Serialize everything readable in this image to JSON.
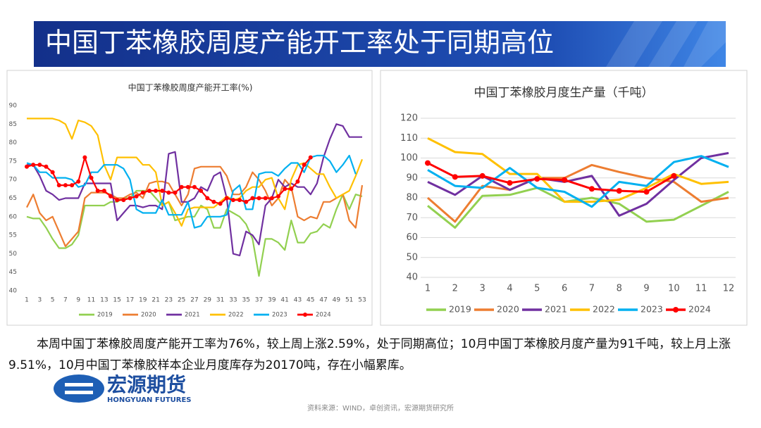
{
  "slide_title": "中国丁苯橡胶周度产能开工率处于同期高位",
  "chart_data": [
    {
      "type": "line",
      "title": "中国丁苯橡胶周度产能开工率(%)",
      "categories": [
        1,
        null,
        3,
        null,
        5,
        null,
        7,
        null,
        9,
        null,
        11,
        null,
        13,
        null,
        15,
        null,
        17,
        null,
        19,
        null,
        21,
        null,
        23,
        null,
        25,
        null,
        27,
        null,
        29,
        null,
        31,
        null,
        33,
        null,
        35,
        null,
        37,
        null,
        39,
        null,
        41,
        null,
        43,
        null,
        45,
        null,
        47,
        null,
        49,
        null,
        51,
        null,
        53
      ],
      "ylim": [
        40,
        90
      ],
      "yticks": [
        40,
        45,
        50,
        55,
        60,
        65,
        70,
        75,
        80,
        85,
        90
      ],
      "grid": false,
      "series": [
        {
          "name": "2019",
          "color": "#92d050",
          "values": [
            60,
            59.5,
            59.5,
            57,
            54,
            51.5,
            51.5,
            52.5,
            55,
            63,
            63,
            63,
            63,
            64,
            64,
            65,
            65,
            67,
            67,
            67,
            65,
            63,
            64,
            59,
            59.5,
            60,
            60,
            63,
            62,
            57,
            57,
            62,
            61,
            60,
            58,
            54,
            44,
            54,
            54,
            53,
            51,
            59,
            53,
            53,
            55.5,
            56,
            58,
            57,
            62,
            66,
            62,
            66,
            65.5
          ]
        },
        {
          "name": "2020",
          "color": "#ed7d31",
          "values": [
            62.5,
            66,
            61,
            59,
            60,
            56,
            52,
            54,
            56,
            65,
            66.5,
            66.5,
            66.5,
            66,
            65,
            65,
            66,
            66.5,
            65,
            69,
            69.5,
            69.5,
            69,
            66,
            63,
            66,
            73,
            73.5,
            73.5,
            73.5,
            73.5,
            71,
            66,
            66,
            68,
            72,
            70,
            67,
            63,
            65,
            70,
            68,
            60,
            59,
            60,
            59.5,
            64,
            64,
            65,
            66,
            59,
            57,
            68.5
          ]
        },
        {
          "name": "2021",
          "color": "#7030a0",
          "values": [
            74,
            74,
            71,
            67,
            66,
            64.5,
            65,
            65,
            65,
            69,
            69,
            69,
            69,
            69,
            59,
            61,
            63,
            63,
            62.5,
            63,
            63,
            62,
            77,
            77.5,
            64,
            64,
            65,
            68,
            67,
            71,
            72,
            65,
            50,
            49.5,
            56,
            55,
            52.5,
            63,
            65,
            70,
            68,
            69,
            68,
            68,
            66,
            69,
            76,
            81,
            85,
            84.5,
            81.5,
            81.5,
            81.5
          ]
        },
        {
          "name": "2022",
          "color": "#ffc000",
          "values": [
            86.5,
            86.5,
            86.5,
            86.5,
            86.5,
            86,
            85,
            81,
            86,
            85.5,
            84.5,
            82,
            74,
            70,
            76,
            76,
            76,
            76,
            74,
            74,
            72,
            63,
            64,
            61,
            57.5,
            62,
            62.5,
            62.5,
            62.5,
            62.5,
            64,
            65.5,
            64.5,
            65,
            67,
            68,
            68,
            70,
            70.5,
            65,
            62,
            70,
            74,
            74.5,
            73,
            71.5,
            71.5,
            68,
            65,
            66,
            67,
            71,
            75.5
          ]
        },
        {
          "name": "2023",
          "color": "#00b0f0",
          "values": [
            74.5,
            74,
            72,
            72,
            70.5,
            70.5,
            70.5,
            70,
            68,
            68.5,
            72,
            72,
            74,
            74,
            74,
            73,
            70,
            62,
            61,
            61,
            61,
            64.5,
            60.5,
            60.5,
            60.5,
            64,
            57,
            57.5,
            60,
            60,
            60,
            60.5,
            67,
            68.5,
            62,
            62,
            71.5,
            72,
            72,
            71,
            73,
            74.5,
            74.5,
            72,
            76,
            76.5,
            76.5,
            75,
            72,
            74,
            76.5,
            71.5,
            null
          ]
        },
        {
          "name": "2024",
          "color": "#ff0000",
          "marker": true,
          "values": [
            73.5,
            74,
            74,
            73.5,
            72,
            68.5,
            68.5,
            68.5,
            69.5,
            76,
            70.5,
            67,
            67,
            65.5,
            64.5,
            64.5,
            65,
            65.5,
            66.5,
            67,
            67,
            67,
            66.5,
            66.5,
            68,
            68,
            68,
            67,
            65,
            64,
            63.5,
            65,
            64.5,
            64.5,
            64,
            65,
            65,
            65,
            65,
            65.5,
            67.5,
            67.5,
            69.5,
            74,
            76,
            null,
            null,
            null,
            null,
            null,
            null,
            null,
            null
          ]
        }
      ]
    },
    {
      "type": "line",
      "title": "中国丁苯橡胶月度生产量（千吨）",
      "categories": [
        1,
        2,
        3,
        4,
        5,
        6,
        7,
        8,
        9,
        10,
        11,
        12
      ],
      "ylim": [
        40,
        120
      ],
      "yticks": [
        40,
        50,
        60,
        70,
        80,
        90,
        100,
        110,
        120
      ],
      "grid": true,
      "series": [
        {
          "name": "2019",
          "color": "#92d050",
          "values": [
            76,
            65,
            81,
            81.5,
            85,
            78,
            80,
            77,
            68,
            69,
            76,
            83
          ]
        },
        {
          "name": "2020",
          "color": "#ed7d31",
          "values": [
            80,
            68,
            86,
            84,
            90,
            90,
            96.5,
            93,
            90,
            88,
            78,
            80
          ]
        },
        {
          "name": "2021",
          "color": "#7030a0",
          "values": [
            88,
            81.5,
            91,
            84,
            90,
            88,
            91,
            71,
            77,
            89,
            100,
            102.5
          ]
        },
        {
          "name": "2022",
          "color": "#ffc000",
          "values": [
            110,
            103,
            102,
            92,
            92,
            78,
            78,
            79,
            85,
            92,
            87,
            88
          ]
        },
        {
          "name": "2023",
          "color": "#00b0f0",
          "values": [
            94,
            86,
            85,
            95,
            85,
            83,
            75.5,
            88,
            86,
            98,
            101,
            95.5
          ]
        },
        {
          "name": "2024",
          "color": "#ff0000",
          "marker": true,
          "values": [
            97.5,
            90.5,
            91,
            87.5,
            89.5,
            89,
            84.5,
            83.5,
            83,
            91,
            null,
            null
          ]
        }
      ]
    }
  ],
  "summary": "本周中国丁苯橡胶周度产能开工率为76%，较上周上涨2.59%，处于同期高位；10月中国丁苯橡胶月度产量为91千吨，较上月上涨9.51%，10月中国丁苯橡胶样本企业月度库存为20170吨，存在小幅累库。",
  "logo": {
    "name": "宏源期货",
    "english": "HONGYUAN FUTURES"
  },
  "source": "资料来源：WIND，卓创资讯，宏源期货研究所"
}
